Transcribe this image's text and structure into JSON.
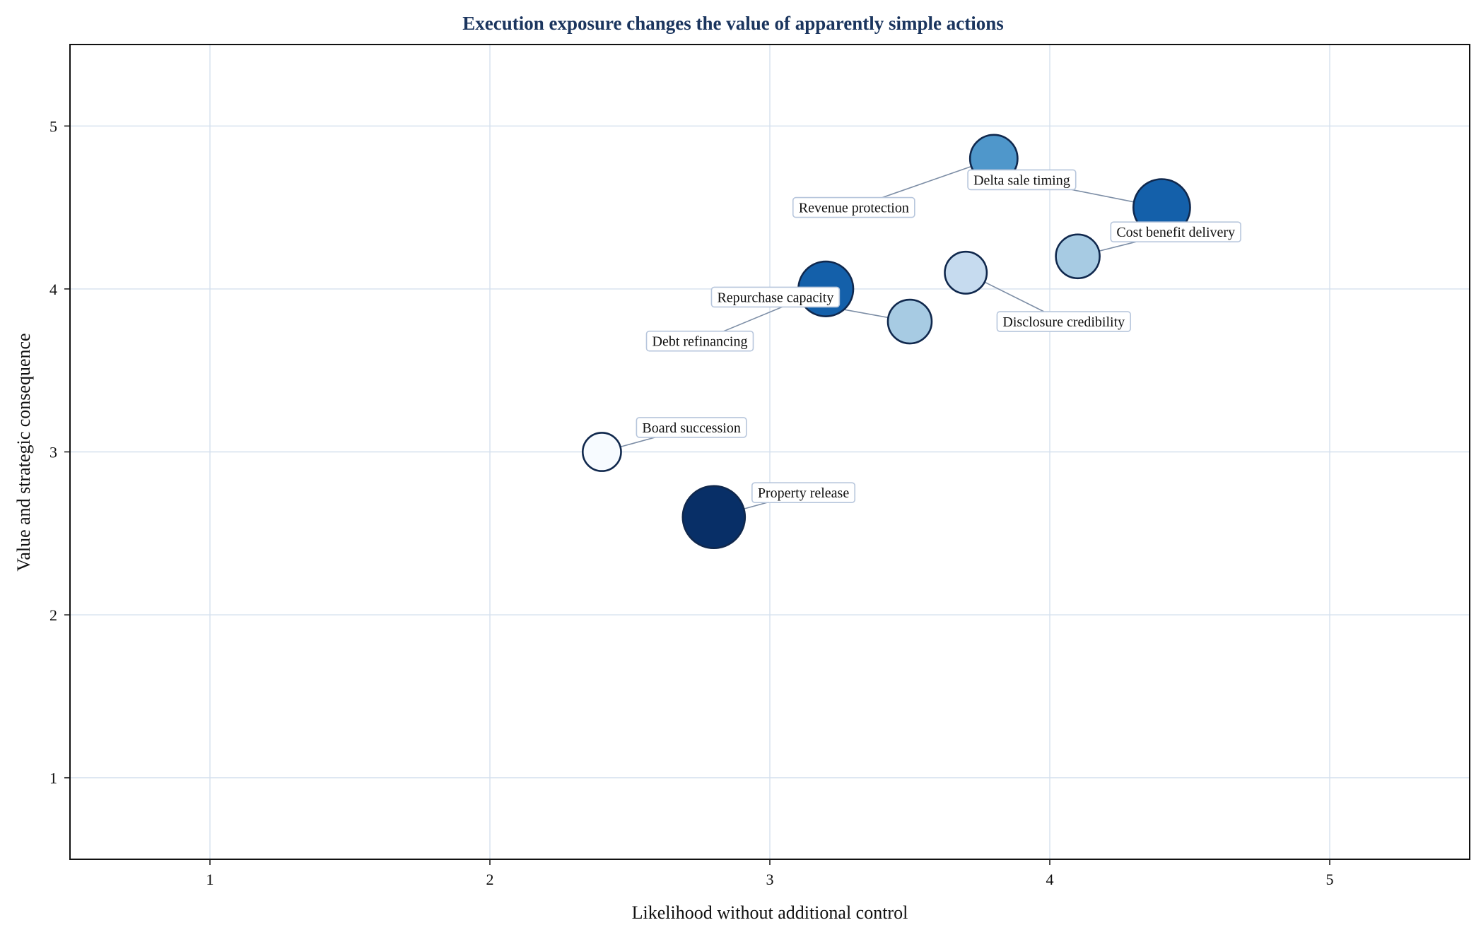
{
  "chart_data": {
    "type": "scatter",
    "title": "Execution exposure changes the value of apparently simple actions",
    "xlabel": "Likelihood without additional control",
    "ylabel": "Value and strategic consequence",
    "xlim": [
      0.5,
      5.5
    ],
    "ylim": [
      0.5,
      5.5
    ],
    "xticks": [
      1,
      2,
      3,
      4,
      5
    ],
    "yticks": [
      1,
      2,
      3,
      4,
      5
    ],
    "grid": true,
    "points": [
      {
        "label": "Revenue protection",
        "x": 3.8,
        "y": 4.8,
        "size": 0.6,
        "color": "#4f97cb",
        "label_x": 3.3,
        "label_y": 4.5
      },
      {
        "label": "Delta sale timing",
        "x": 4.4,
        "y": 4.5,
        "size": 0.85,
        "color": "#1460aa",
        "label_x": 3.9,
        "label_y": 4.67
      },
      {
        "label": "Cost benefit delivery",
        "x": 4.1,
        "y": 4.2,
        "size": 0.5,
        "color": "#a7cbe3",
        "label_x": 4.45,
        "label_y": 4.35
      },
      {
        "label": "Disclosure credibility",
        "x": 3.7,
        "y": 4.1,
        "size": 0.45,
        "color": "#c6dbef",
        "label_x": 4.05,
        "label_y": 3.8
      },
      {
        "label": "Debt refinancing",
        "x": 3.2,
        "y": 4.0,
        "size": 0.8,
        "color": "#1460aa",
        "label_x": 2.75,
        "label_y": 3.68
      },
      {
        "label": "Repurchase capacity",
        "x": 3.5,
        "y": 3.8,
        "size": 0.5,
        "color": "#a7cbe3",
        "label_x": 3.02,
        "label_y": 3.95
      },
      {
        "label": "Board succession",
        "x": 2.4,
        "y": 3.0,
        "size": 0.35,
        "color": "#f7fbff",
        "label_x": 2.72,
        "label_y": 3.15
      },
      {
        "label": "Property release",
        "x": 2.8,
        "y": 2.6,
        "size": 1.0,
        "color": "#082f67",
        "label_x": 3.12,
        "label_y": 2.75
      }
    ]
  }
}
